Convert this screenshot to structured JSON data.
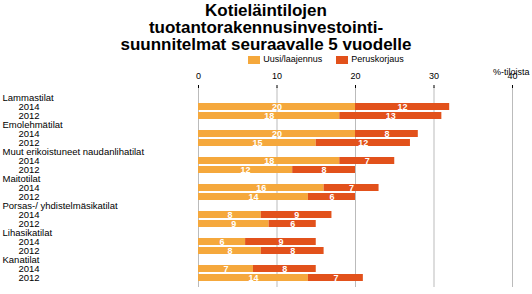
{
  "chart_data": {
    "type": "bar",
    "title": "Kotieläintilojen\ntuotantorakennusinvestointi-\nsuunnitelmat seuraavalle 5 vuodelle",
    "orientation": "horizontal",
    "stacked": true,
    "data_labels": true,
    "grid": true,
    "legend": "top",
    "xlabel": "%-tiloista",
    "xlim": [
      0,
      40
    ],
    "xticks": [
      0,
      10,
      20,
      30,
      40
    ],
    "categories": [
      "Lammastilat",
      "2014",
      "2012",
      "Emolehmätilat",
      "2014",
      "2012",
      "Muut erikoistuneet naudanlihatilat",
      "2014",
      "2012",
      "Maitotilat",
      "2014",
      "2012",
      "Porsas-/ yhdistelmäsikatilat",
      "2014",
      "2012",
      "Lihasikatilat",
      "2014",
      "2012",
      "Kanatilat",
      "2014",
      "2012"
    ],
    "series": [
      {
        "name": "Uusi/laajennus",
        "color": "#F5A83C",
        "values": [
          null,
          20,
          18,
          null,
          20,
          15,
          null,
          18,
          12,
          null,
          16,
          14,
          null,
          8,
          9,
          null,
          6,
          8,
          null,
          7,
          14
        ]
      },
      {
        "name": "Peruskorjaus",
        "color": "#E2511B",
        "values": [
          null,
          12,
          13,
          null,
          8,
          12,
          null,
          7,
          8,
          null,
          7,
          6,
          null,
          9,
          6,
          null,
          9,
          8,
          null,
          8,
          7
        ]
      }
    ]
  }
}
